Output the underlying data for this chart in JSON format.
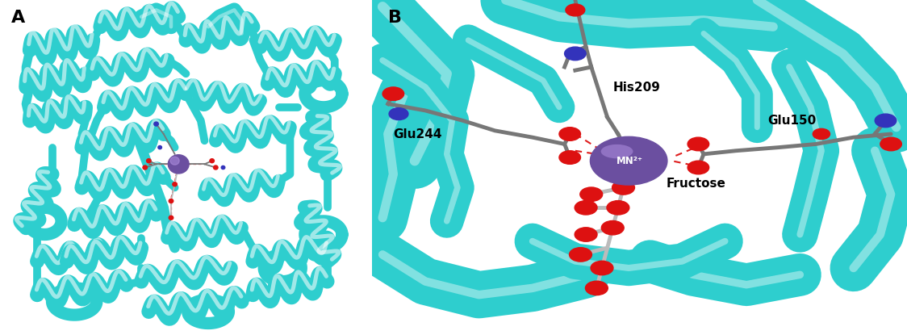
{
  "panel_A_label": "A",
  "panel_B_label": "B",
  "background_color": "#ffffff",
  "teal_color": "#2ECECE",
  "teal_mid": "#20AAAA",
  "teal_dark": "#158888",
  "mn_color": "#6B4FA0",
  "mn_label": "MN²⁺",
  "his209_label": "His209",
  "glu244_label": "Glu244",
  "glu150_label": "Glu150",
  "fructose_label": "Fructose",
  "stick_color": "#777777",
  "stick_color_light": "#BBBBBB",
  "oxygen_color": "#DD1111",
  "nitrogen_color": "#3333BB",
  "label_fontsize": 11,
  "panel_label_fontsize": 16,
  "white_highlight": "#ffffff"
}
